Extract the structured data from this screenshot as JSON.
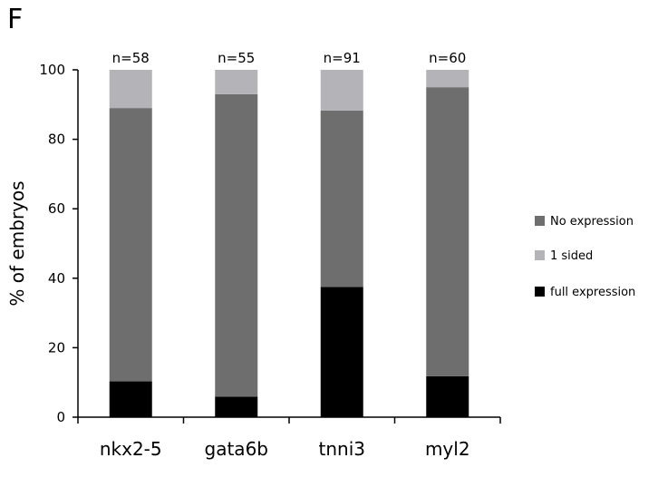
{
  "panel_label": "F",
  "chart_data": {
    "type": "bar",
    "stacked": true,
    "title": "",
    "xlabel": "",
    "ylabel": "% of embryos",
    "ylim": [
      0,
      100
    ],
    "yticks": [
      0,
      20,
      40,
      60,
      80,
      100
    ],
    "categories": [
      "nkx2-5",
      "gata6b",
      "tnni3",
      "myl2"
    ],
    "annotations": [
      "n=58",
      "n=55",
      "n=91",
      "n=60"
    ],
    "series": [
      {
        "name": "full expression",
        "color": "#000000",
        "values": [
          10.3,
          5.9,
          37.5,
          11.8
        ]
      },
      {
        "name": "No expression",
        "color": "#6e6e6e",
        "values": [
          78.7,
          87.1,
          50.8,
          83.2
        ]
      },
      {
        "name": "1 sided",
        "color": "#b4b4b8",
        "values": [
          11.0,
          7.0,
          11.7,
          5.0
        ]
      }
    ],
    "legend_order": [
      "No expression",
      "1 sided",
      "full expression"
    ],
    "legend_position": "right",
    "grid": false
  }
}
